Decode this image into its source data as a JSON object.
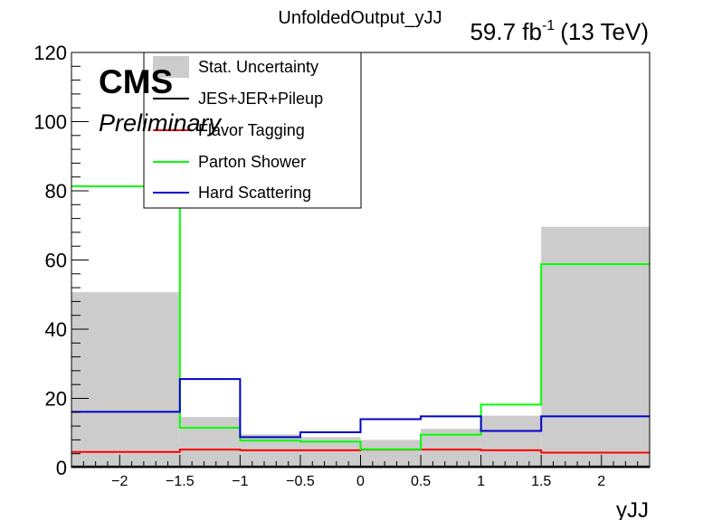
{
  "chart_data": {
    "type": "step",
    "title": "UnfoldedOutput_yJJ",
    "lumi_text": "59.7 fb",
    "lumi_superscript": "-1",
    "energy_text": "(13 TeV)",
    "experiment": "CMS",
    "status": "Preliminary",
    "xlabel": "yJJ",
    "ylabel": "",
    "xlim": [
      -2.4,
      2.4
    ],
    "ylim": [
      0,
      120
    ],
    "x_ticks": [
      {
        "value": -2,
        "label": "−2"
      },
      {
        "value": -1.5,
        "label": "−1.5"
      },
      {
        "value": -1,
        "label": "−1"
      },
      {
        "value": -0.5,
        "label": "−0.5"
      },
      {
        "value": 0,
        "label": "0"
      },
      {
        "value": 0.5,
        "label": "0.5"
      },
      {
        "value": 1,
        "label": "1"
      },
      {
        "value": 1.5,
        "label": "1.5"
      },
      {
        "value": 2,
        "label": "2"
      }
    ],
    "y_ticks": [
      {
        "value": 0,
        "label": "0"
      },
      {
        "value": 20,
        "label": "20"
      },
      {
        "value": 40,
        "label": "40"
      },
      {
        "value": 60,
        "label": "60"
      },
      {
        "value": 80,
        "label": "80"
      },
      {
        "value": 100,
        "label": "100"
      },
      {
        "value": 120,
        "label": "120"
      }
    ],
    "bin_edges": [
      -2.4,
      -1.5,
      -1.0,
      -0.5,
      0.0,
      0.5,
      1.0,
      1.5,
      2.4
    ],
    "stat_uncertainty": {
      "name": "Stat. Uncertainty",
      "color": "#cccccc",
      "values": [
        50.7,
        14.6,
        9.6,
        8.8,
        8.0,
        11.2,
        15.0,
        69.6
      ]
    },
    "series": [
      {
        "name": "JES+JER+Pileup",
        "color": "#000000",
        "values": [
          0.3,
          0.3,
          0.3,
          0.3,
          0.3,
          0.3,
          0.3,
          0.3
        ]
      },
      {
        "name": "Flavor Tagging",
        "color": "#ff0000",
        "values": [
          4.5,
          5.2,
          5.0,
          5.0,
          5.2,
          5.2,
          5.0,
          4.3
        ]
      },
      {
        "name": "Parton Shower",
        "color": "#00ff00",
        "values": [
          81.3,
          11.5,
          7.8,
          7.5,
          5.3,
          9.5,
          18.2,
          58.8
        ]
      },
      {
        "name": "Hard Scattering",
        "color": "#0000cc",
        "values": [
          16.1,
          25.6,
          8.8,
          10.2,
          14.0,
          14.8,
          10.6,
          14.8
        ]
      }
    ],
    "legend": {
      "position": "top-left",
      "entries": [
        "Stat. Uncertainty",
        "JES+JER+Pileup",
        "Flavor Tagging",
        "Parton Shower",
        "Hard Scattering"
      ]
    }
  }
}
